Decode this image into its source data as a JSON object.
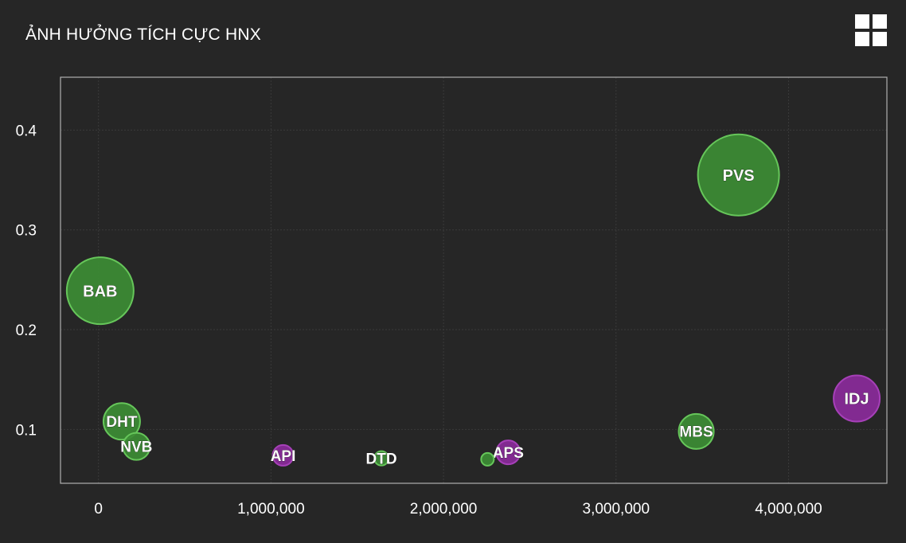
{
  "title": "ẢNH HƯỞNG TÍCH CỰC HNX",
  "menu_icon": "grid-menu-icon",
  "colors": {
    "background": "#262626",
    "positive": "#3c8c34",
    "positive_stroke": "#66c65a",
    "negative": "#8a2a9a",
    "negative_stroke": "#a640b8",
    "plot_border": "#b0b0b0",
    "grid": "#3a3a3a"
  },
  "chart_data": {
    "type": "scatter",
    "title": "ẢNH HƯỞNG TÍCH CỰC HNX",
    "xlabel": "",
    "ylabel": "",
    "xlim": [
      -220000,
      4570000
    ],
    "ylim": [
      0.046,
      0.453
    ],
    "xticks": [
      0,
      1000000,
      2000000,
      3000000,
      4000000
    ],
    "xtick_labels": [
      "0",
      "1,000,000",
      "2,000,000",
      "3,000,000",
      "4,000,000"
    ],
    "yticks": [
      0.1,
      0.2,
      0.3,
      0.4
    ],
    "ytick_labels": [
      "0.1",
      "0.2",
      "0.3",
      "0.4"
    ],
    "grid": true,
    "points": [
      {
        "label": "PVS",
        "x": 3710000,
        "y": 0.355,
        "size": 51,
        "color": "green"
      },
      {
        "label": "BAB",
        "x": 10000,
        "y": 0.239,
        "size": 42,
        "color": "green"
      },
      {
        "label": "IDJ",
        "x": 4395000,
        "y": 0.131,
        "size": 29,
        "color": "purple"
      },
      {
        "label": "MBS",
        "x": 3465000,
        "y": 0.098,
        "size": 22,
        "color": "green"
      },
      {
        "label": "DHT",
        "x": 135000,
        "y": 0.108,
        "size": 23,
        "color": "green"
      },
      {
        "label": "NVB",
        "x": 220000,
        "y": 0.083,
        "size": 17,
        "color": "green"
      },
      {
        "label": "API",
        "x": 1070000,
        "y": 0.074,
        "size": 13,
        "color": "purple"
      },
      {
        "label": "DTD",
        "x": 1640000,
        "y": 0.071,
        "size": 9,
        "color": "green"
      },
      {
        "label": "APS",
        "x": 2375000,
        "y": 0.077,
        "size": 15,
        "color": "purple"
      },
      {
        "label": "",
        "x": 2255000,
        "y": 0.07,
        "size": 8,
        "color": "green"
      }
    ]
  }
}
